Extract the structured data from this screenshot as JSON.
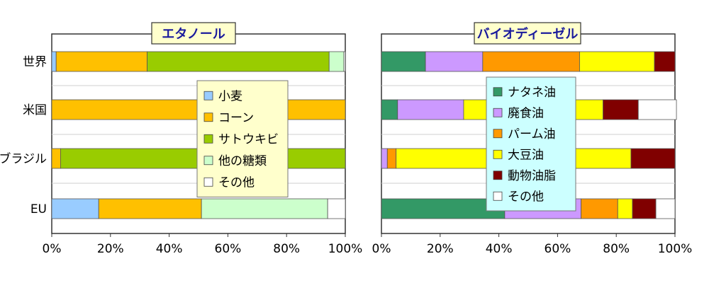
{
  "chart_data": [
    {
      "type": "bar",
      "orientation": "horizontal",
      "stacked": true,
      "title": "エタノール",
      "categories": [
        "世界",
        "米国",
        "ブラジル",
        "EU"
      ],
      "x_ticks": [
        "0%",
        "20%",
        "40%",
        "60%",
        "80%",
        "100%"
      ],
      "xlim": [
        0,
        100
      ],
      "legend_position": "center",
      "grid": false,
      "series": [
        {
          "name": "小麦",
          "color": "#99ccff",
          "values": [
            1.5,
            0,
            0,
            16
          ]
        },
        {
          "name": "コーン",
          "color": "#ffc000",
          "values": [
            31,
            100,
            3,
            35
          ]
        },
        {
          "name": "サトウキビ",
          "color": "#99cc00",
          "values": [
            62,
            0,
            97,
            0
          ]
        },
        {
          "name": "他の糖類",
          "color": "#ccffcc",
          "values": [
            5,
            0,
            0,
            43
          ]
        },
        {
          "name": "その他",
          "color": "#ffffff",
          "values": [
            0.5,
            0,
            0,
            6
          ]
        }
      ]
    },
    {
      "type": "bar",
      "orientation": "horizontal",
      "stacked": true,
      "title": "バイオディーゼル",
      "categories": [
        "世界",
        "米国",
        "ブラジル",
        "EU"
      ],
      "x_ticks": [
        "0%",
        "20%",
        "40%",
        "60%",
        "80%",
        "100%"
      ],
      "xlim": [
        0,
        100
      ],
      "legend_position": "center",
      "grid": false,
      "series": [
        {
          "name": "ナタネ油",
          "color": "#339966",
          "values": [
            15,
            5.5,
            0,
            42
          ]
        },
        {
          "name": "廃食油",
          "color": "#cc99ff",
          "values": [
            19.5,
            22.5,
            2,
            26
          ]
        },
        {
          "name": "パーム油",
          "color": "#ff9900",
          "values": [
            33,
            0,
            3,
            12.5
          ]
        },
        {
          "name": "大豆油",
          "color": "#ffff00",
          "values": [
            25.5,
            47.5,
            80,
            5
          ]
        },
        {
          "name": "動物油脂",
          "color": "#800000",
          "values": [
            7,
            12,
            15,
            8
          ]
        },
        {
          "name": "その他",
          "color": "#ffffff",
          "values": [
            0,
            13,
            0,
            6.5
          ]
        }
      ]
    }
  ]
}
